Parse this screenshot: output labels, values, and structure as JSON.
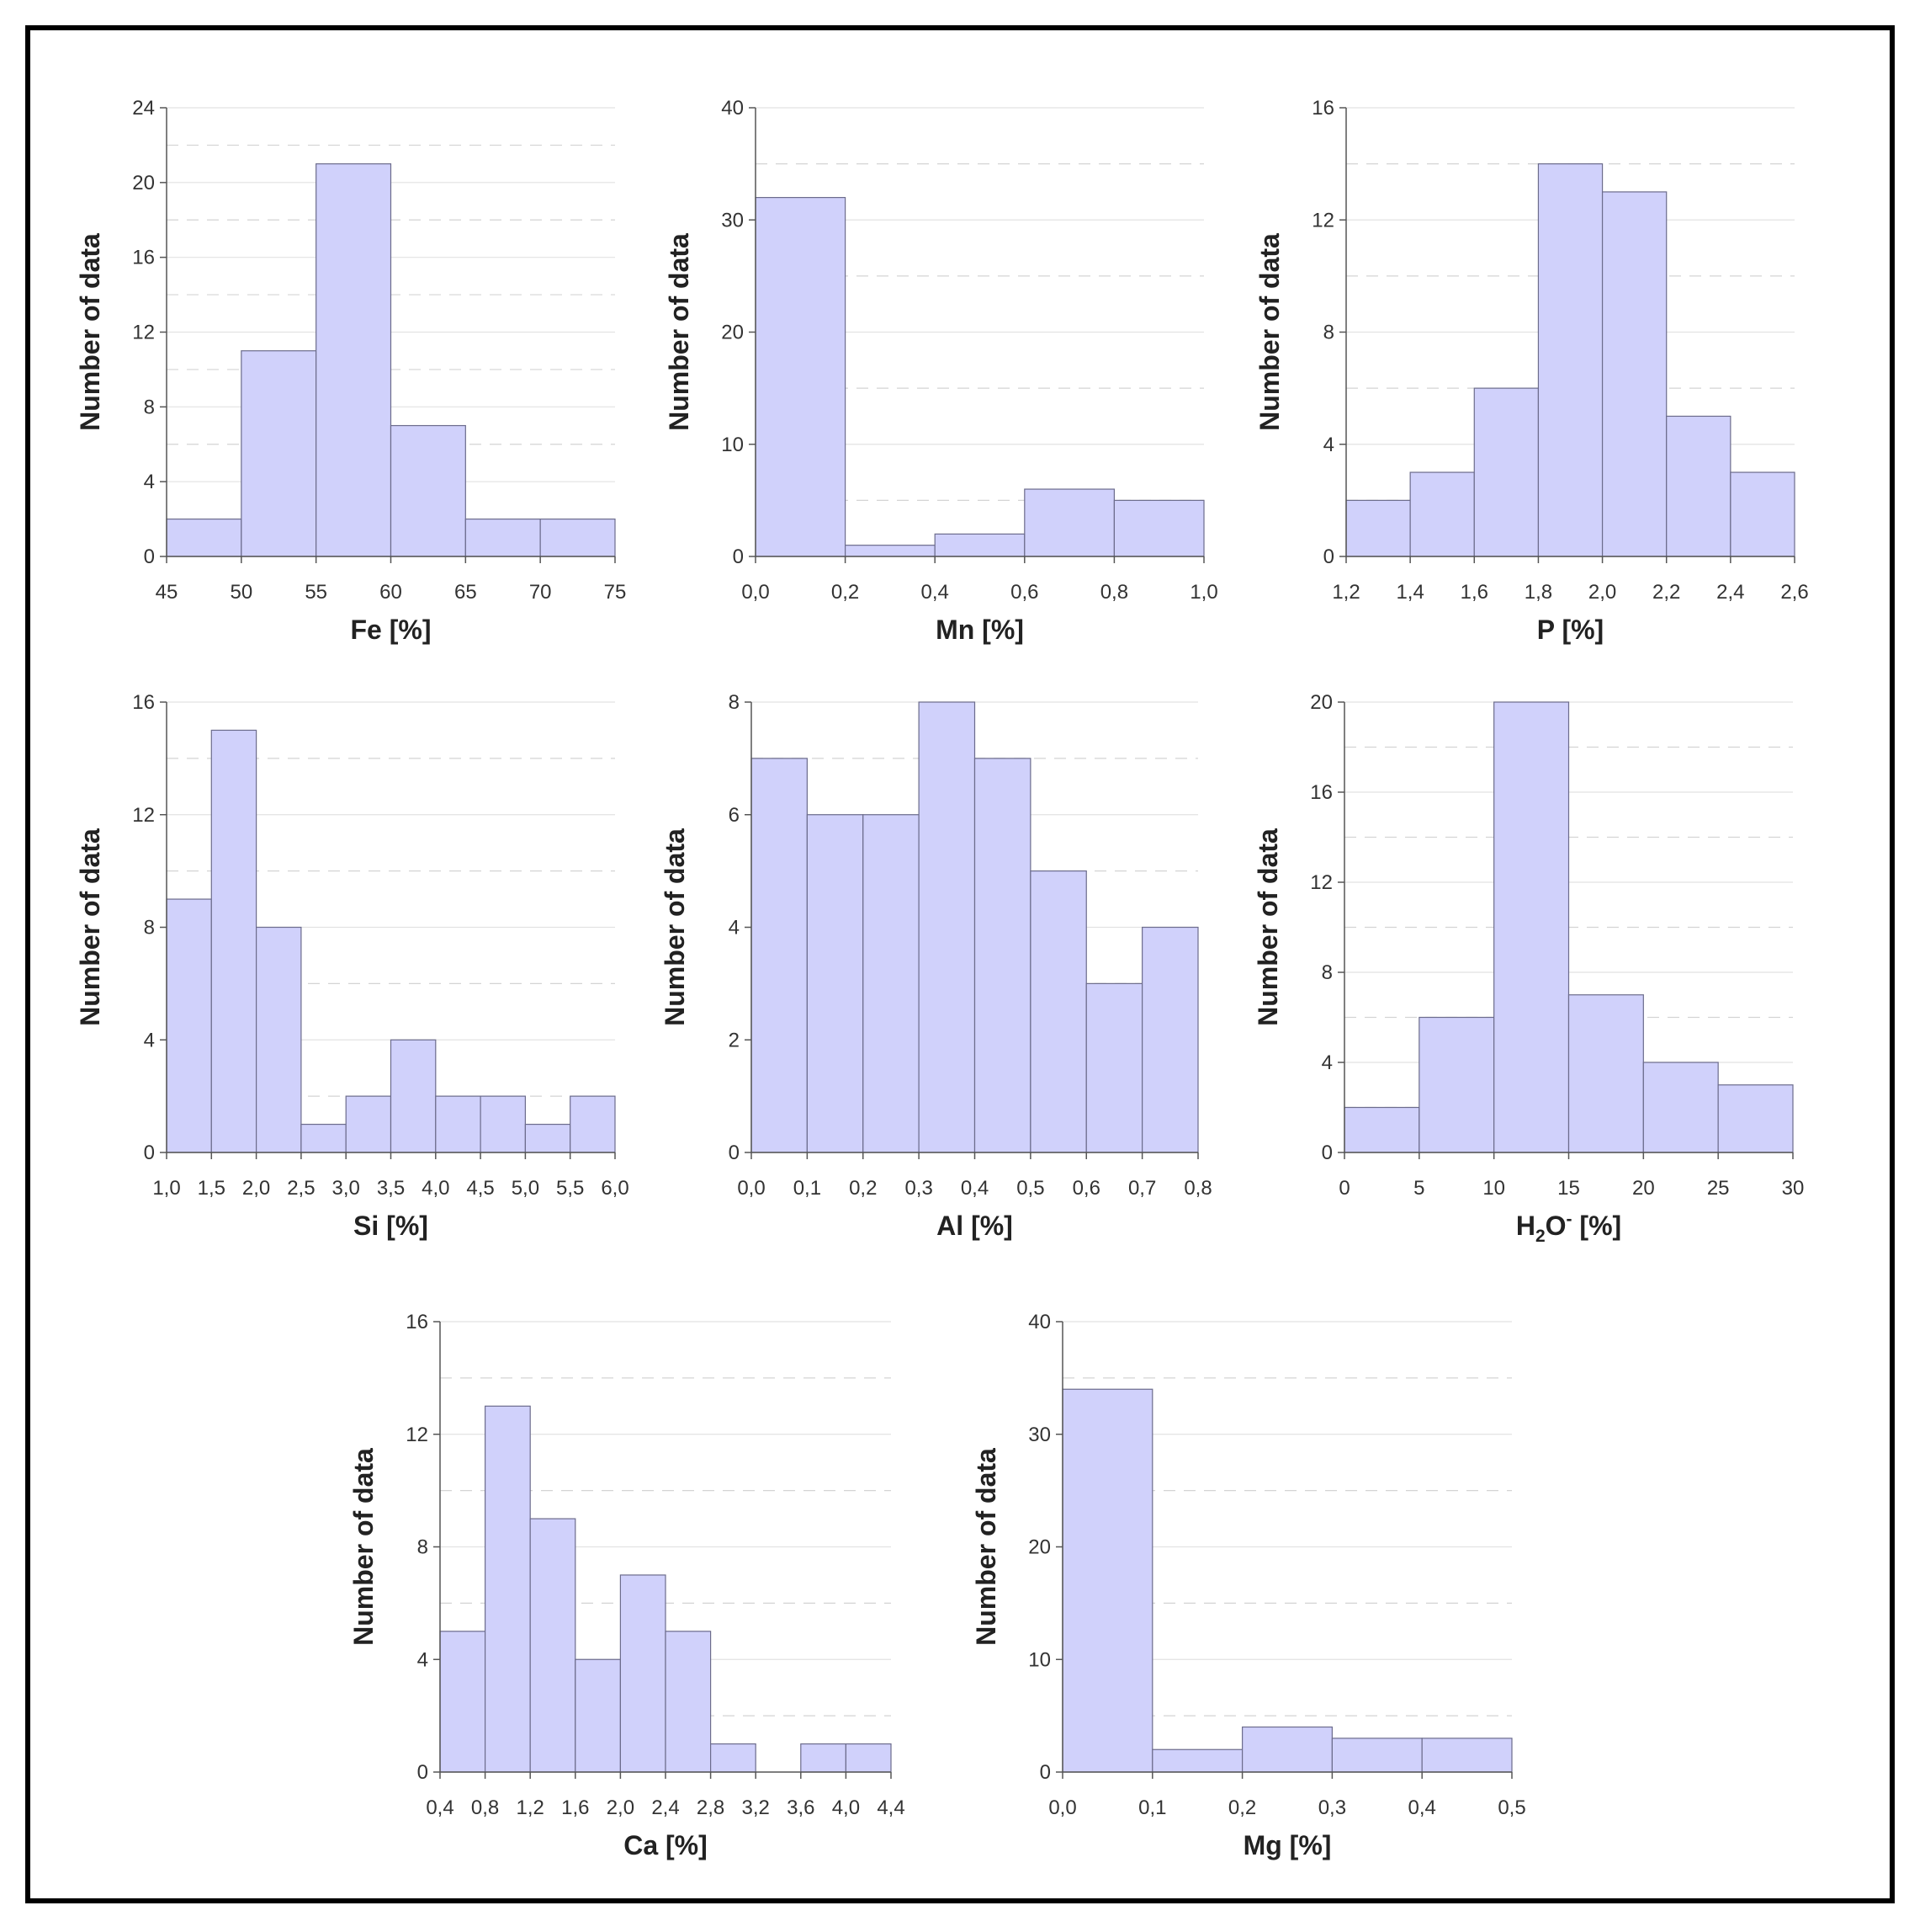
{
  "style": {
    "bar_fill": "#d0d1fb",
    "bar_stroke": "#6c6c8c",
    "frame_color": "#000000"
  },
  "chart_data": [
    {
      "type": "bar",
      "xlabel": "Fe [%]",
      "ylabel": "Number of data",
      "bin_edges": [
        "45",
        "50",
        "55",
        "60",
        "65",
        "70",
        "75"
      ],
      "values": [
        2,
        11,
        21,
        7,
        2,
        2
      ],
      "ylim": [
        0,
        24
      ],
      "yticks": [
        "0",
        "4",
        "8",
        "12",
        "16",
        "20",
        "24"
      ],
      "grid": true
    },
    {
      "type": "bar",
      "xlabel": "Mn [%]",
      "ylabel": "Number of data",
      "bin_edges": [
        "0,0",
        "0,2",
        "0,4",
        "0,6",
        "0,8",
        "1,0"
      ],
      "values": [
        32,
        1,
        2,
        6,
        5
      ],
      "ylim": [
        0,
        40
      ],
      "yticks": [
        "0",
        "10",
        "20",
        "30",
        "40"
      ],
      "grid": true
    },
    {
      "type": "bar",
      "xlabel": "P [%]",
      "ylabel": "Number of data",
      "bin_edges": [
        "1,2",
        "1,4",
        "1,6",
        "1,8",
        "2,0",
        "2,2",
        "2,4",
        "2,6"
      ],
      "values": [
        2,
        3,
        6,
        14,
        13,
        5,
        3
      ],
      "ylim": [
        0,
        16
      ],
      "yticks": [
        "0",
        "4",
        "8",
        "12",
        "16"
      ],
      "grid": true
    },
    {
      "type": "bar",
      "xlabel": "Si [%]",
      "ylabel": "Number of data",
      "bin_edges": [
        "1,0",
        "1,5",
        "2,0",
        "2,5",
        "3,0",
        "3,5",
        "4,0",
        "4,5",
        "5,0",
        "5,5",
        "6,0"
      ],
      "values": [
        9,
        15,
        8,
        1,
        2,
        4,
        2,
        2,
        1,
        2
      ],
      "ylim": [
        0,
        16
      ],
      "yticks": [
        "0",
        "4",
        "8",
        "12",
        "16"
      ],
      "grid": true
    },
    {
      "type": "bar",
      "xlabel": "Al [%]",
      "ylabel": "Number of data",
      "bin_edges": [
        "0,0",
        "0,1",
        "0,2",
        "0,3",
        "0,4",
        "0,5",
        "0,6",
        "0,7",
        "0,8"
      ],
      "values": [
        7,
        6,
        6,
        8,
        7,
        5,
        3,
        4
      ],
      "ylim": [
        0,
        8
      ],
      "yticks": [
        "0",
        "2",
        "4",
        "6",
        "8"
      ],
      "grid": true
    },
    {
      "type": "bar",
      "xlabel": "H",
      "xlabel_sub": "2",
      "xlabel_rest": "O",
      "xlabel_sup": "-",
      "xlabel_end": " [%]",
      "ylabel": "Number of data",
      "bin_edges": [
        "0",
        "5",
        "10",
        "15",
        "20",
        "25",
        "30"
      ],
      "values": [
        2,
        6,
        20,
        7,
        4,
        3
      ],
      "ylim": [
        0,
        20
      ],
      "yticks": [
        "0",
        "4",
        "8",
        "12",
        "16",
        "20"
      ],
      "grid": true
    },
    {
      "type": "bar",
      "xlabel": "Ca [%]",
      "ylabel": "Number of data",
      "bin_edges": [
        "0,4",
        "0,8",
        "1,2",
        "1,6",
        "2,0",
        "2,4",
        "2,8",
        "3,2",
        "3,6",
        "4,0",
        "4,4"
      ],
      "values": [
        5,
        13,
        9,
        4,
        7,
        5,
        1,
        0,
        1,
        1
      ],
      "ylim": [
        0,
        16
      ],
      "yticks": [
        "0",
        "4",
        "8",
        "12",
        "16"
      ],
      "grid": true
    },
    {
      "type": "bar",
      "xlabel": "Mg [%]",
      "ylabel": "Number of data",
      "bin_edges": [
        "0,0",
        "0,1",
        "0,2",
        "0,3",
        "0,4",
        "0,5"
      ],
      "values": [
        34,
        2,
        4,
        3,
        3
      ],
      "ylim": [
        0,
        40
      ],
      "yticks": [
        "0",
        "10",
        "20",
        "30",
        "40"
      ],
      "grid": true
    }
  ]
}
